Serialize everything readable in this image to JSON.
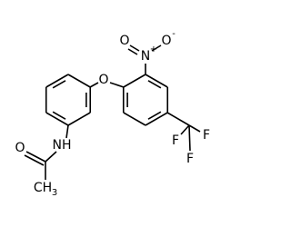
{
  "atoms": [
    {
      "label": "O"
    },
    {
      "label": "N",
      "charge": "+"
    },
    {
      "label": "O",
      "charge": "-"
    },
    {
      "label": "O"
    },
    {
      "label": "F"
    },
    {
      "label": "F"
    },
    {
      "label": "F"
    },
    {
      "label": "NH"
    },
    {
      "label": "O"
    },
    {
      "label": "CH",
      "subscript": "3"
    }
  ]
}
